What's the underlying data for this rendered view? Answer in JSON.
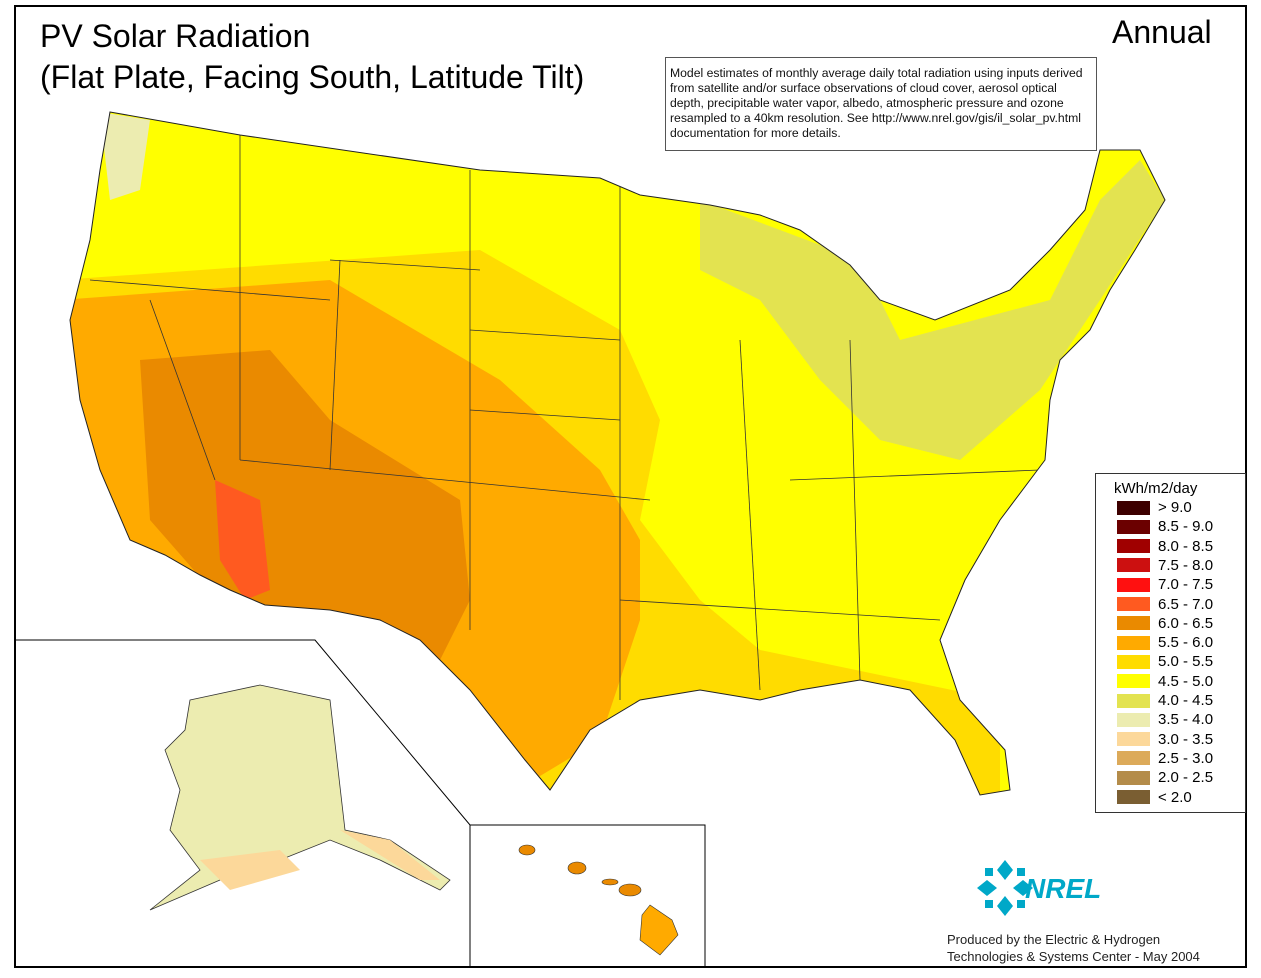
{
  "title_line1": "PV Solar Radiation",
  "title_line2": "(Flat Plate, Facing South, Latitude Tilt)",
  "period": "Annual",
  "note": "Model estimates of monthly average daily total radiation using inputs derived from satellite and/or surface observations of cloud cover, aerosol optical depth, precipitable water vapor, albedo, atmospheric pressure and ozone resampled to a 40km resolution.  See http://www.nrel.gov/gis/il_solar_pv.html documentation for more details.",
  "legend": {
    "title": "kWh/m2/day",
    "items": [
      {
        "label": "> 9.0",
        "color": "#3d0000"
      },
      {
        "label": "8.5 - 9.0",
        "color": "#6b0000"
      },
      {
        "label": "8.0 - 8.5",
        "color": "#a00000"
      },
      {
        "label": "7.5 - 8.0",
        "color": "#cc1010"
      },
      {
        "label": "7.0 - 7.5",
        "color": "#ff1010"
      },
      {
        "label": "6.5 - 7.0",
        "color": "#ff5a20"
      },
      {
        "label": "6.0 - 6.5",
        "color": "#ea8a00"
      },
      {
        "label": "5.5 - 6.0",
        "color": "#ffaa00"
      },
      {
        "label": "5.0 - 5.5",
        "color": "#ffdc00"
      },
      {
        "label": "4.5 - 5.0",
        "color": "#ffff00"
      },
      {
        "label": "4.0 - 4.5",
        "color": "#e3e350"
      },
      {
        "label": "3.5 - 4.0",
        "color": "#ececb0"
      },
      {
        "label": "3.0 - 3.5",
        "color": "#fcd89a"
      },
      {
        "label": "2.5 - 3.0",
        "color": "#dcaa5a"
      },
      {
        "label": "2.0 - 2.5",
        "color": "#b48c4a"
      },
      {
        "label": "< 2.0",
        "color": "#7a5e32"
      }
    ]
  },
  "logo": "NREL",
  "credit_line1": "Produced by the Electric & Hydrogen",
  "credit_line2": "Technologies & Systems Center - May 2004",
  "colors": {
    "logo": "#00a8c8"
  }
}
